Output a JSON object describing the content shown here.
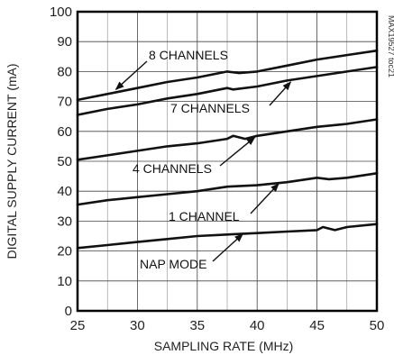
{
  "chart_data": {
    "type": "line",
    "xlabel": "SAMPLING RATE (MHz)",
    "ylabel": "DIGITAL SUPPLY CURRENT (mA)",
    "xlim": [
      25,
      50
    ],
    "ylim": [
      0,
      100
    ],
    "xticks": [
      25,
      30,
      35,
      40,
      45,
      50
    ],
    "yticks": [
      0,
      10,
      20,
      30,
      40,
      50,
      60,
      70,
      80,
      90,
      100
    ],
    "grid": true,
    "watermark": "MAX19527 toc21",
    "series": [
      {
        "name": "8 CHANNELS",
        "x": [
          25,
          27.5,
          30,
          32.5,
          35,
          37.5,
          38.5,
          40,
          42.5,
          45,
          47.5,
          50
        ],
        "y": [
          70.5,
          72.5,
          74.5,
          76.5,
          78.0,
          80.0,
          79.5,
          80.0,
          82.0,
          84.0,
          85.5,
          87.0
        ]
      },
      {
        "name": "7 CHANNELS",
        "x": [
          25,
          27.5,
          30,
          32.5,
          35,
          37.5,
          38,
          40,
          42.5,
          45,
          47.5,
          50
        ],
        "y": [
          65.5,
          67.5,
          69.0,
          71.0,
          72.5,
          74.5,
          74.0,
          75.0,
          77.0,
          78.5,
          80.0,
          81.5
        ]
      },
      {
        "name": "4 CHANNELS",
        "x": [
          25,
          27.5,
          30,
          32.5,
          35,
          37.5,
          38,
          39,
          40,
          42.5,
          45,
          47.5,
          50
        ],
        "y": [
          50.5,
          52.0,
          53.5,
          55.0,
          56.0,
          57.5,
          58.5,
          57.5,
          58.5,
          60.0,
          61.5,
          62.5,
          64.0
        ]
      },
      {
        "name": "1 CHANNEL",
        "x": [
          25,
          27.5,
          30,
          32.5,
          35,
          37.5,
          40,
          42.5,
          45,
          46,
          47.5,
          50
        ],
        "y": [
          35.5,
          37.0,
          38.0,
          39.0,
          40.0,
          41.5,
          42.0,
          43.0,
          44.5,
          44.0,
          44.5,
          46.0
        ]
      },
      {
        "name": "NAP MODE",
        "x": [
          25,
          27.5,
          30,
          32.5,
          35,
          37.5,
          40,
          42.5,
          45,
          45.5,
          46.5,
          47.5,
          50
        ],
        "y": [
          21.0,
          22.0,
          23.0,
          24.0,
          25.0,
          25.5,
          26.0,
          26.5,
          27.0,
          28.0,
          27.0,
          28.0,
          29.0
        ]
      }
    ],
    "annotations": [
      {
        "text": "8 CHANNELS",
        "series": "8 CHANNELS",
        "arrow_to": [
          28.2,
          74.0
        ]
      },
      {
        "text": "7 CHANNELS",
        "series": "7 CHANNELS",
        "arrow_to": [
          42.8,
          76.5
        ]
      },
      {
        "text": "4 CHANNELS",
        "series": "4 CHANNELS",
        "arrow_to": [
          39.8,
          58.0
        ]
      },
      {
        "text": "1 CHANNEL",
        "series": "1 CHANNEL",
        "arrow_to": [
          41.8,
          42.5
        ]
      },
      {
        "text": "NAP MODE",
        "series": "NAP MODE",
        "arrow_to": [
          38.8,
          25.7
        ]
      }
    ]
  }
}
